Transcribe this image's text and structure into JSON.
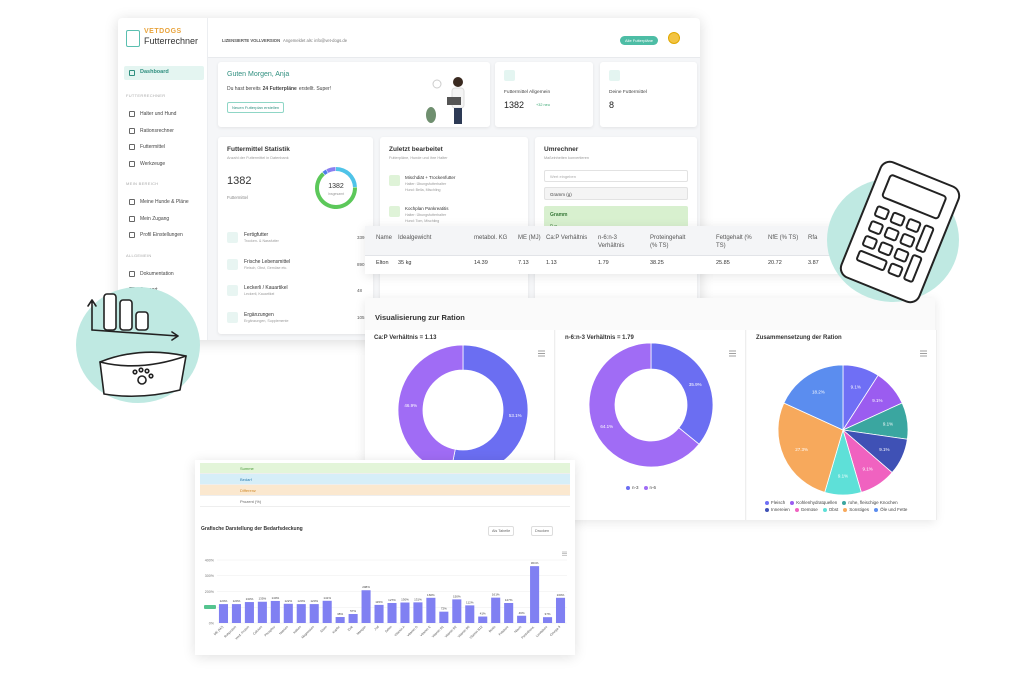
{
  "dashboard": {
    "logo": {
      "brand": "VETDOGS",
      "product": "Futterrechner"
    },
    "license": "LIZENSIERTE VOLLVERSION",
    "user_info": "Angemeldet als: info@vet-dogs.de",
    "header_button": "Alle Futterpläne",
    "nav": {
      "main": "Dashboard",
      "groups": [
        {
          "title": "FUTTERRECHNER",
          "items": [
            "Halter und Hund",
            "Rationsrechner",
            "Futtermittel",
            "Werkzeuge"
          ]
        },
        {
          "title": "MEIN BEREICH",
          "items": [
            "Meine Hunde & Pläne",
            "Mein Zugang",
            "Profil Einstellungen"
          ]
        },
        {
          "title": "ALLGEMEIN",
          "items": [
            "Dokumentation",
            "Support"
          ]
        }
      ]
    },
    "welcome": {
      "greeting": "Guten Morgen, Anja",
      "text_before": "Du hast bereits",
      "highlight": "24 Futterpläne",
      "text_after": "erstellt. Super!",
      "button": "Neuen Futterplan erstellen"
    },
    "stat_cards": [
      {
        "label": "Futtermittel Allgemein",
        "value": 1382,
        "badge": "+32 neu"
      },
      {
        "label": "Deine Futtermittel",
        "value": 8
      }
    ],
    "statistics": {
      "title": "Futtermittel Statistik",
      "subtitle": "Anzahl der Futtermittel in Datenbank",
      "total": 1382,
      "total_label": "Futtermittel",
      "ring_value": 1382,
      "ring_label": "Insgesamt",
      "categories": [
        {
          "name": "Fertigfutter",
          "desc": "Trocken- & Nassfutter",
          "count": 339,
          "color": "#4fc3e8"
        },
        {
          "name": "Frische Lebensmittel",
          "desc": "Fleisch, Obst, Gemüse etc.",
          "count": 890,
          "color": "#5cc85a"
        },
        {
          "name": "Leckerli / Kauartikel",
          "desc": "Leckerli, Kauartikel",
          "count": 48,
          "color": "#4f7ee8"
        },
        {
          "name": "Ergänzungen",
          "desc": "Ergänzungen, Supplemente",
          "count": 105,
          "color": "#8a7ff0"
        }
      ]
    },
    "recent": {
      "title": "Zuletzt bearbeitet",
      "subtitle": "Futterpläne, Hunde und ihre Halter",
      "items": [
        {
          "name": "Mischdiät + Trockenfutter",
          "lines": [
            "Halter: Übungsfutterhalter",
            "Hund: Bella, Mischling"
          ]
        },
        {
          "name": "Kochplan Pankreatitis",
          "lines": [
            "Halter: Übungsfutterhalter",
            "Hund: Tom, Mischling"
          ]
        }
      ]
    },
    "converter": {
      "title": "Umrechner",
      "subtitle": "Maßeinheiten konvertieren",
      "input_placeholder": "Wert eingeben",
      "unit": "Gramm (g)",
      "result_label": "Gramm",
      "result": "0 g"
    }
  },
  "table": {
    "headers": [
      "Name",
      "Idealgewicht",
      "metabol. KG",
      "ME (MJ)",
      "Ca:P Verhältnis",
      "n-6:n-3 Verhältnis",
      "Proteingehalt (% TS)",
      "Fettgehalt (% TS)",
      "NfE (% TS)",
      "Rfa"
    ],
    "rows": [
      [
        "Elton",
        "35 kg",
        14.39,
        7.13,
        1.13,
        1.79,
        38.25,
        25.85,
        20.72,
        3.87
      ]
    ]
  },
  "visualization": {
    "title": "Visualisierung zur Ration"
  },
  "coverage": {
    "title": "Grafische Darstellung der Bedarfsdeckung",
    "buttons": [
      "Als Tabelle",
      "Drucken"
    ],
    "summary_rows": [
      "Summe",
      "Bedarf",
      "Differenz",
      "Prozent (%)"
    ]
  },
  "chart_data": [
    {
      "type": "donut",
      "title": "Ca:P Verhältnis = 1.13",
      "values": [
        53.1,
        46.9
      ],
      "value_labels": [
        "53.1%",
        "46.9%"
      ],
      "colors": [
        "#6b6ef2",
        "#a06cf5"
      ]
    },
    {
      "type": "donut",
      "title": "n-6:n-3 Verhältnis = 1.79",
      "categories": [
        "n-3",
        "n-6"
      ],
      "values": [
        35.9,
        64.1
      ],
      "value_labels": [
        "35.9%",
        "64.1%"
      ],
      "colors": [
        "#6b6ef2",
        "#a06cf5"
      ]
    },
    {
      "type": "pie",
      "title": "Zusammensetzung der Ration",
      "categories": [
        "Fleisch",
        "Kohlenhydratquellen",
        "rohe, fleischige Knochen",
        "Innereien",
        "Gemüse",
        "Obst",
        "Sonstiges",
        "Öle und Fette"
      ],
      "values": [
        9.1,
        9.1,
        9.1,
        9.1,
        9.1,
        9.1,
        27.3,
        18.2
      ],
      "value_labels": [
        "9.1%",
        "9.1%",
        "9.1%",
        "9.1%",
        "9.1%",
        "9.1%",
        "27.3%",
        "18.2%"
      ],
      "colors": [
        "#6f6ff5",
        "#9b5cf0",
        "#3aa6a0",
        "#3f51b5",
        "#f062c0",
        "#5ee0d8",
        "#f7a95c",
        "#5b8def"
      ]
    },
    {
      "type": "bar",
      "categories": [
        "ME (MJ)",
        "Rohprotein",
        "Verd. Protein",
        "Calcium",
        "Phosphor",
        "Natrium",
        "Kalium",
        "Magnesium",
        "Eisen",
        "Kupfer",
        "Zink",
        "Mangan",
        "Jod",
        "Selen",
        "Vitamin A",
        "Vitamin D",
        "Vitamin E",
        "Vitamin B1",
        "Vitamin B2",
        "Vitamin B6",
        "Vitamin B12",
        "Biotin",
        "Folsäure",
        "Niacin",
        "Pantothens.",
        "Linolsäure",
        "Omega-3"
      ],
      "values": [
        120,
        120,
        133,
        135,
        140,
        122,
        120,
        120,
        141,
        38,
        57,
        208,
        115,
        127,
        130,
        131,
        160,
        72,
        150,
        112,
        41,
        161,
        127,
        46,
        361,
        37,
        160
      ],
      "value_labels": [
        "120%",
        "120%",
        "133%",
        "135%",
        "140%",
        "122%",
        "120%",
        "120%",
        "141%",
        "38%",
        "57%",
        "208%",
        "115%",
        "127%",
        "130%",
        "131%",
        "160%",
        "72%",
        "150%",
        "112%",
        "41%",
        "161%",
        "127%",
        "46%",
        "361%",
        "37%",
        "160%"
      ],
      "color": "#8080f2",
      "ylim": [
        0,
        400
      ],
      "yticks": [
        {
          "value": 0,
          "label": "0%"
        },
        {
          "value": 100,
          "label": "100%"
        },
        {
          "value": 200,
          "label": "200%"
        },
        {
          "value": 300,
          "label": "300%"
        },
        {
          "value": 400,
          "label": "400%"
        }
      ]
    }
  ]
}
